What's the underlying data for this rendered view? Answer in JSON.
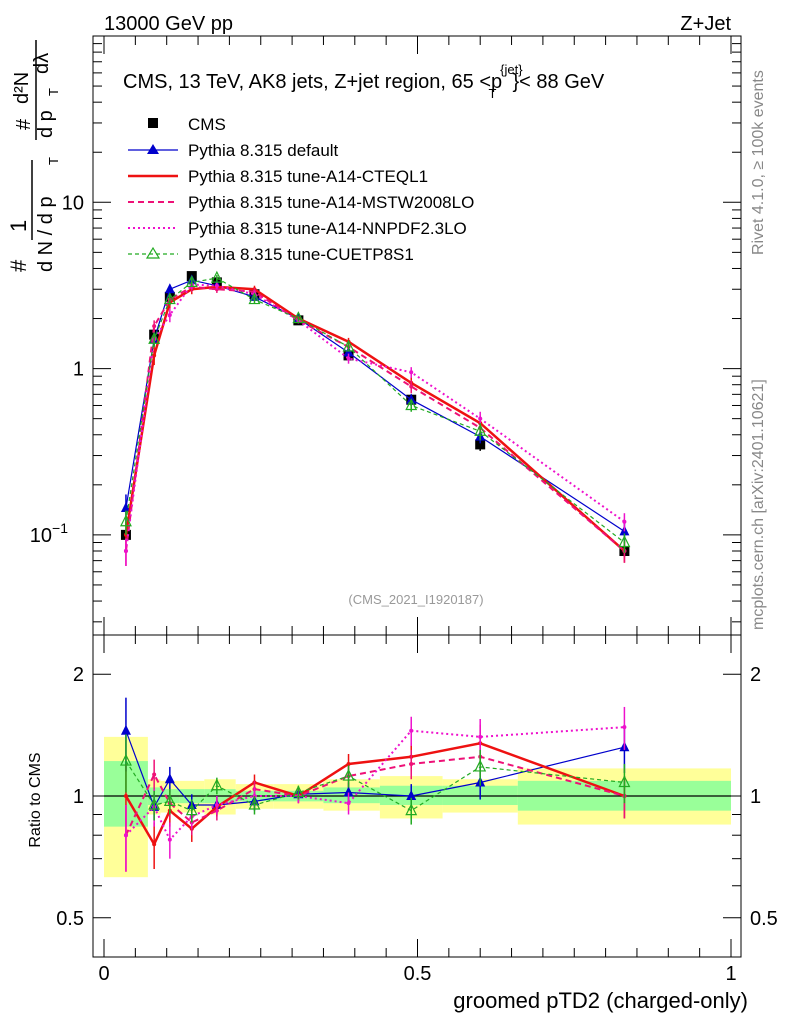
{
  "header": {
    "energy_label": "13000 GeV pp",
    "process_label": "Z+Jet",
    "plot_title": "CMS, 13 TeV, AK8 jets, Z+jet region, 65 <p",
    "plot_title_sup": "{jet}",
    "plot_title_sub": "T",
    "plot_title_tail": "}< 88 GeV",
    "analysis_id": "(CMS_2021_I1920187)",
    "side_label_rivet": "Rivet 4.1.0, ≥ 100k events",
    "side_label_site": "mcplots.cern.ch [arXiv:2401.10621]"
  },
  "ylabel_main": {
    "hash": "#",
    "one": "1",
    "dn": "d N / d p",
    "dn_sub": "T",
    "hash2": "#",
    "d2n": "d²N",
    "dpt": "d p",
    "dpt_sub": "T",
    "dlambda": "dλ"
  },
  "colors": {
    "cms": "#000000",
    "default": "#0000cc",
    "cteql1": "#ee1111",
    "mstw": "#ee1177",
    "nnpdf": "#ee11cc",
    "cuetp8s1": "#22aa22",
    "band_yellow": "#ffff99",
    "band_green": "#99ff99"
  },
  "chart_data": [
    {
      "type": "line",
      "panel": "main",
      "yscale": "log",
      "xlim": [
        0,
        1
      ],
      "ylim": [
        0.025,
        100
      ],
      "y_ticks": [
        {
          "value": 0.1,
          "label": "10",
          "sup": "−1"
        },
        {
          "value": 1,
          "label": "1",
          "sup": ""
        },
        {
          "value": 10,
          "label": "10",
          "sup": ""
        }
      ],
      "x": [
        0.035,
        0.08,
        0.105,
        0.14,
        0.18,
        0.24,
        0.31,
        0.39,
        0.49,
        0.6,
        0.83
      ],
      "series": [
        {
          "name": "CMS",
          "key": "cms",
          "style": "marker-square",
          "values": [
            0.1,
            1.6,
            2.7,
            3.6,
            3.3,
            2.8,
            1.95,
            1.2,
            0.65,
            0.35,
            0.08
          ],
          "errors": [
            0.007,
            0.1,
            0.15,
            0.2,
            0.2,
            0.15,
            0.1,
            0.07,
            0.05,
            0.03,
            0.006
          ]
        },
        {
          "name": "Pythia 8.315 default",
          "key": "default",
          "style": "solid-triangle",
          "values": [
            0.145,
            1.5,
            3.0,
            3.4,
            3.15,
            2.7,
            2.0,
            1.25,
            0.65,
            0.39,
            0.105
          ],
          "errors": [
            0.03,
            0.12,
            0.2,
            0.2,
            0.15,
            0.12,
            0.08,
            0.07,
            0.05,
            0.035,
            0.015
          ]
        },
        {
          "name": "Pythia 8.315 tune-A14-CTEQL1",
          "key": "cteql1",
          "style": "solid-thick",
          "values": [
            0.1,
            1.2,
            2.5,
            3.0,
            3.1,
            3.0,
            2.0,
            1.45,
            0.82,
            0.47,
            0.08
          ],
          "errors": [
            0.02,
            0.15,
            0.2,
            0.2,
            0.15,
            0.15,
            0.08,
            0.08,
            0.07,
            0.05,
            0.012
          ]
        },
        {
          "name": "Pythia 8.315 tune-A14-MSTW2008LO",
          "key": "mstw",
          "style": "dashed",
          "values": [
            0.08,
            1.8,
            2.6,
            3.1,
            3.0,
            2.9,
            1.95,
            1.35,
            0.78,
            0.44,
            0.08
          ],
          "errors": [
            0.015,
            0.15,
            0.2,
            0.2,
            0.15,
            0.15,
            0.08,
            0.08,
            0.07,
            0.05,
            0.012
          ]
        },
        {
          "name": "Pythia 8.315 tune-A14-NNPDF2.3LO",
          "key": "nnpdf",
          "style": "dotted",
          "values": [
            0.08,
            1.5,
            2.1,
            3.2,
            3.15,
            2.8,
            1.95,
            1.15,
            0.95,
            0.5,
            0.12
          ],
          "errors": [
            0.015,
            0.15,
            0.2,
            0.2,
            0.15,
            0.15,
            0.08,
            0.08,
            0.07,
            0.05,
            0.015
          ]
        },
        {
          "name": "Pythia 8.315 tune-CUETP8S1",
          "key": "cuetp8s1",
          "style": "dashed-triangle",
          "values": [
            0.12,
            1.5,
            2.6,
            3.3,
            3.5,
            2.6,
            2.0,
            1.35,
            0.6,
            0.42,
            0.09
          ],
          "errors": [
            0.02,
            0.15,
            0.2,
            0.2,
            0.15,
            0.15,
            0.08,
            0.08,
            0.05,
            0.05,
            0.012
          ]
        }
      ]
    },
    {
      "type": "line",
      "panel": "ratio",
      "ylabel": "Ratio to CMS",
      "xlabel": "groomed pTD2 (charged-only)",
      "yscale": "log",
      "xlim": [
        0,
        1
      ],
      "ylim": [
        0.4,
        2.5
      ],
      "y_ticks": [
        {
          "value": 0.5,
          "label": "0.5"
        },
        {
          "value": 1,
          "label": "1"
        },
        {
          "value": 2,
          "label": "2"
        }
      ],
      "x_ticks": [
        {
          "value": 0,
          "label": "0"
        },
        {
          "value": 0.5,
          "label": "0.5"
        },
        {
          "value": 1,
          "label": "1"
        }
      ],
      "band_bins": [
        {
          "x0": 0.0,
          "x1": 0.07,
          "yellow": [
            0.63,
            1.4
          ],
          "green": [
            0.84,
            1.22
          ]
        },
        {
          "x0": 0.07,
          "x1": 0.09,
          "yellow": [
            0.9,
            1.1
          ],
          "green": [
            0.95,
            1.05
          ]
        },
        {
          "x0": 0.09,
          "x1": 0.12,
          "yellow": [
            0.91,
            1.09
          ],
          "green": [
            0.96,
            1.04
          ]
        },
        {
          "x0": 0.12,
          "x1": 0.16,
          "yellow": [
            0.91,
            1.09
          ],
          "green": [
            0.96,
            1.04
          ]
        },
        {
          "x0": 0.16,
          "x1": 0.21,
          "yellow": [
            0.9,
            1.1
          ],
          "green": [
            0.96,
            1.04
          ]
        },
        {
          "x0": 0.21,
          "x1": 0.27,
          "yellow": [
            0.93,
            1.07
          ],
          "green": [
            0.97,
            1.03
          ]
        },
        {
          "x0": 0.27,
          "x1": 0.35,
          "yellow": [
            0.93,
            1.07
          ],
          "green": [
            0.97,
            1.03
          ]
        },
        {
          "x0": 0.35,
          "x1": 0.44,
          "yellow": [
            0.92,
            1.1
          ],
          "green": [
            0.96,
            1.05
          ]
        },
        {
          "x0": 0.44,
          "x1": 0.54,
          "yellow": [
            0.88,
            1.12
          ],
          "green": [
            0.95,
            1.06
          ]
        },
        {
          "x0": 0.54,
          "x1": 0.66,
          "yellow": [
            0.91,
            1.1
          ],
          "green": [
            0.95,
            1.06
          ]
        },
        {
          "x0": 0.66,
          "x1": 1.0,
          "yellow": [
            0.85,
            1.17
          ],
          "green": [
            0.92,
            1.09
          ]
        }
      ],
      "x": [
        0.035,
        0.08,
        0.105,
        0.14,
        0.18,
        0.24,
        0.31,
        0.39,
        0.49,
        0.6,
        0.83
      ],
      "series": [
        {
          "name": "Pythia 8.315 default",
          "key": "default",
          "style": "solid-triangle",
          "values": [
            1.45,
            0.94,
            1.1,
            0.95,
            0.95,
            0.97,
            1.01,
            1.02,
            1.0,
            1.08,
            1.32
          ],
          "errors": [
            0.3,
            0.07,
            0.08,
            0.06,
            0.05,
            0.05,
            0.04,
            0.06,
            0.07,
            0.1,
            0.18
          ]
        },
        {
          "name": "Pythia 8.315 tune-A14-CTEQL1",
          "key": "cteql1",
          "style": "solid-thick",
          "values": [
            1.0,
            0.76,
            0.92,
            0.83,
            0.94,
            1.08,
            1.0,
            1.2,
            1.25,
            1.35,
            1.0
          ],
          "errors": [
            0.2,
            0.1,
            0.08,
            0.06,
            0.05,
            0.05,
            0.04,
            0.07,
            0.1,
            0.15,
            0.12
          ]
        },
        {
          "name": "Pythia 8.315 tune-A14-MSTW2008LO",
          "key": "mstw",
          "style": "dashed",
          "values": [
            0.8,
            1.13,
            0.96,
            0.86,
            0.92,
            1.04,
            1.0,
            1.12,
            1.2,
            1.25,
            1.0
          ],
          "errors": [
            0.15,
            0.1,
            0.08,
            0.06,
            0.05,
            0.05,
            0.04,
            0.07,
            0.1,
            0.13,
            0.12
          ]
        },
        {
          "name": "Pythia 8.315 tune-A14-NNPDF2.3LO",
          "key": "nnpdf",
          "style": "dotted",
          "values": [
            0.8,
            0.94,
            0.78,
            0.89,
            0.95,
            1.0,
            1.0,
            0.96,
            1.45,
            1.4,
            1.48
          ],
          "errors": [
            0.15,
            0.1,
            0.08,
            0.06,
            0.05,
            0.05,
            0.04,
            0.06,
            0.12,
            0.15,
            0.18
          ]
        },
        {
          "name": "Pythia 8.315 tune-CUETP8S1",
          "key": "cuetp8s1",
          "style": "dashed-triangle",
          "values": [
            1.22,
            0.95,
            0.97,
            0.92,
            1.06,
            0.95,
            1.02,
            1.12,
            0.92,
            1.18,
            1.08
          ],
          "errors": [
            0.2,
            0.08,
            0.07,
            0.06,
            0.05,
            0.05,
            0.04,
            0.07,
            0.07,
            0.12,
            0.12
          ]
        }
      ]
    }
  ]
}
